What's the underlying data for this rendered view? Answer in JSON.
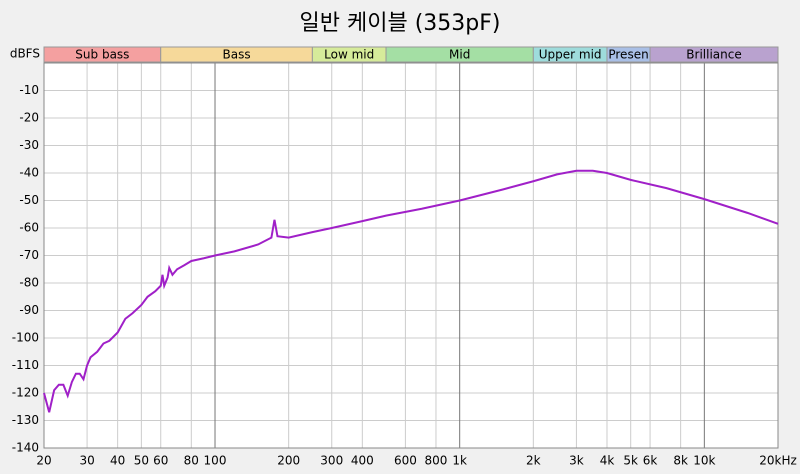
{
  "chart_data": {
    "type": "line",
    "title": "일반 케이블 (353pF)",
    "y_label": "dBFS",
    "log_x": true,
    "grid": true,
    "xlim": [
      20,
      20000
    ],
    "ylim": [
      -140,
      0
    ],
    "xticks": [
      20,
      30,
      40,
      50,
      60,
      80,
      100,
      200,
      300,
      400,
      600,
      800,
      {
        "value": 1000,
        "label": "1k"
      },
      {
        "value": 2000,
        "label": "2k"
      },
      {
        "value": 3000,
        "label": "3k"
      },
      {
        "value": 4000,
        "label": "4k"
      },
      {
        "value": 5000,
        "label": "5k"
      },
      {
        "value": 6000,
        "label": "6k"
      },
      {
        "value": 8000,
        "label": "8k"
      },
      {
        "value": 10000,
        "label": "10k"
      },
      {
        "value": 20000,
        "label": "20kHz"
      }
    ],
    "yticks": [
      -10,
      -20,
      -30,
      -40,
      -50,
      -60,
      -70,
      -80,
      -90,
      -100,
      -110,
      -120,
      -130,
      -140
    ],
    "bands": [
      {
        "name": "Sub bass",
        "start": 20,
        "end": 60,
        "color": "#f4a0a0"
      },
      {
        "name": "Bass",
        "start": 60,
        "end": 250,
        "color": "#f6d99a"
      },
      {
        "name": "Low mid",
        "start": 250,
        "end": 500,
        "color": "#d6eb9a"
      },
      {
        "name": "Mid",
        "start": 500,
        "end": 2000,
        "color": "#a4dfa4"
      },
      {
        "name": "Upper mid",
        "start": 2000,
        "end": 4000,
        "color": "#9edcdc"
      },
      {
        "name": "Presen",
        "start": 4000,
        "end": 6000,
        "color": "#a9bfe6"
      },
      {
        "name": "Brilliance",
        "start": 6000,
        "end": 20000,
        "color": "#b9a2cf"
      }
    ],
    "x": [
      20,
      21,
      22,
      23,
      24,
      25,
      26,
      27,
      28,
      29,
      30,
      31,
      33,
      35,
      37,
      40,
      43,
      46,
      50,
      53,
      57,
      60,
      61,
      62,
      64,
      65,
      67,
      70,
      75,
      80,
      90,
      100,
      120,
      150,
      170,
      175,
      180,
      200,
      250,
      300,
      400,
      500,
      700,
      1000,
      1500,
      2000,
      2500,
      3000,
      3500,
      4000,
      5000,
      7000,
      10000,
      15000,
      20000
    ],
    "series": [
      {
        "name": "353pF",
        "color": "#a020c8",
        "values": [
          -120,
          -127,
          -119,
          -117,
          -117,
          -121,
          -116,
          -113,
          -113,
          -115,
          -110,
          -107,
          -105,
          -102,
          -101,
          -98,
          -93,
          -91,
          -88,
          -85,
          -83,
          -81,
          -77,
          -81,
          -78,
          -74.5,
          -77,
          -75,
          -73.5,
          -72,
          -71,
          -70,
          -68.5,
          -66,
          -63.5,
          -57,
          -63,
          -63.5,
          -61.5,
          -60,
          -57.5,
          -55.5,
          -53,
          -50,
          -46,
          -43,
          -40.5,
          -39.2,
          -39.2,
          -40,
          -42.5,
          -45.5,
          -49.5,
          -54.5,
          -58.5
        ]
      }
    ]
  }
}
